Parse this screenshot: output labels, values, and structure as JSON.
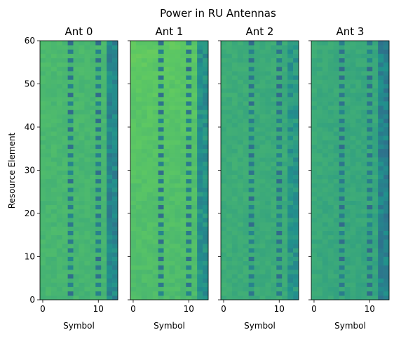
{
  "chart_data": {
    "type": "heatmap",
    "title": "Power in RU Antennas",
    "xlabel": "Symbol",
    "ylabel": "Resource Element",
    "xlim": [
      -0.5,
      13.5
    ],
    "ylim": [
      0,
      60
    ],
    "x_ticks": [
      "0",
      "10"
    ],
    "y_ticks": [
      "0",
      "10",
      "20",
      "30",
      "40",
      "50",
      "60"
    ],
    "colormap": "viridis",
    "dmrs_symbols": [
      5,
      10
    ],
    "panels": [
      {
        "name": "Ant 0",
        "base": 0.66,
        "gradient": 0.02,
        "tail_level": 0.46
      },
      {
        "name": "Ant 1",
        "base": 0.69,
        "gradient": 0.06,
        "tail_level": 0.5
      },
      {
        "name": "Ant 2",
        "base": 0.62,
        "gradient": 0.0,
        "tail_level": 0.52
      },
      {
        "name": "Ant 3",
        "base": 0.6,
        "gradient": 0.01,
        "tail_level": 0.44
      }
    ]
  }
}
